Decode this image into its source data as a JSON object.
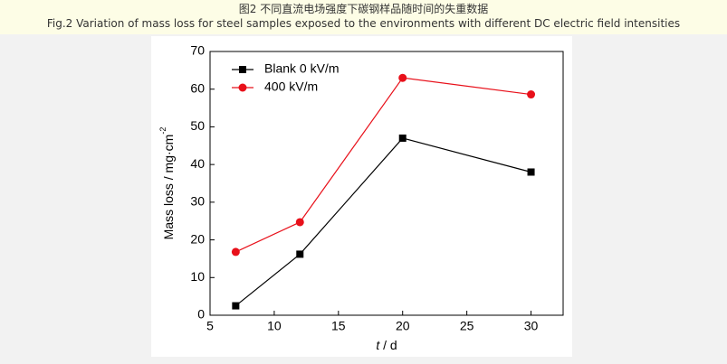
{
  "caption": {
    "zh": "图2 不同直流电场强度下碳钢样品随时间的失重数据",
    "en": "Fig.2 Variation of mass loss for steel samples exposed to the environments with different DC electric field intensities"
  },
  "chart_data": {
    "type": "line",
    "xlabel_var": "t",
    "xlabel": "/ d",
    "ylabel": "Mass loss / mg·cm",
    "ylabel_sup": "-2",
    "x": [
      7,
      12,
      20,
      30
    ],
    "series": [
      {
        "name": "Blank 0 kV/m",
        "color": "#000000",
        "marker": "square",
        "values": [
          2.5,
          16.2,
          47,
          38
        ]
      },
      {
        "name": "400 kV/m",
        "color": "#e8101a",
        "marker": "circle",
        "values": [
          16.8,
          24.7,
          63,
          58.6
        ]
      }
    ],
    "xlim": [
      5,
      32.5
    ],
    "xticks": [
      5,
      10,
      15,
      20,
      25,
      30
    ],
    "ylim": [
      0,
      70
    ],
    "yticks": [
      0,
      10,
      20,
      30,
      40,
      50,
      60,
      70
    ],
    "legend": "upper-left"
  }
}
